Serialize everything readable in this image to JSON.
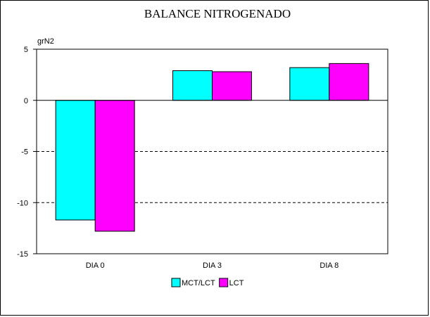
{
  "chart_data": {
    "type": "bar",
    "title": "BALANCE NITROGENADO",
    "ylabel": "grN2",
    "xlabel": "",
    "categories": [
      "DIA 0",
      "DIA 3",
      "DIA 8"
    ],
    "series": [
      {
        "name": "MCT/LCT",
        "color": "#00ffff",
        "values": [
          -11.7,
          2.9,
          3.2
        ]
      },
      {
        "name": "LCT",
        "color": "#ff00ff",
        "values": [
          -12.8,
          2.8,
          3.6
        ]
      }
    ],
    "ylim": [
      -15,
      5
    ],
    "yticks": [
      "5",
      "0",
      "-5",
      "-10",
      "-15"
    ],
    "grid": "dashed horizontal at -5 and -10",
    "legend_position": "bottom-center"
  }
}
